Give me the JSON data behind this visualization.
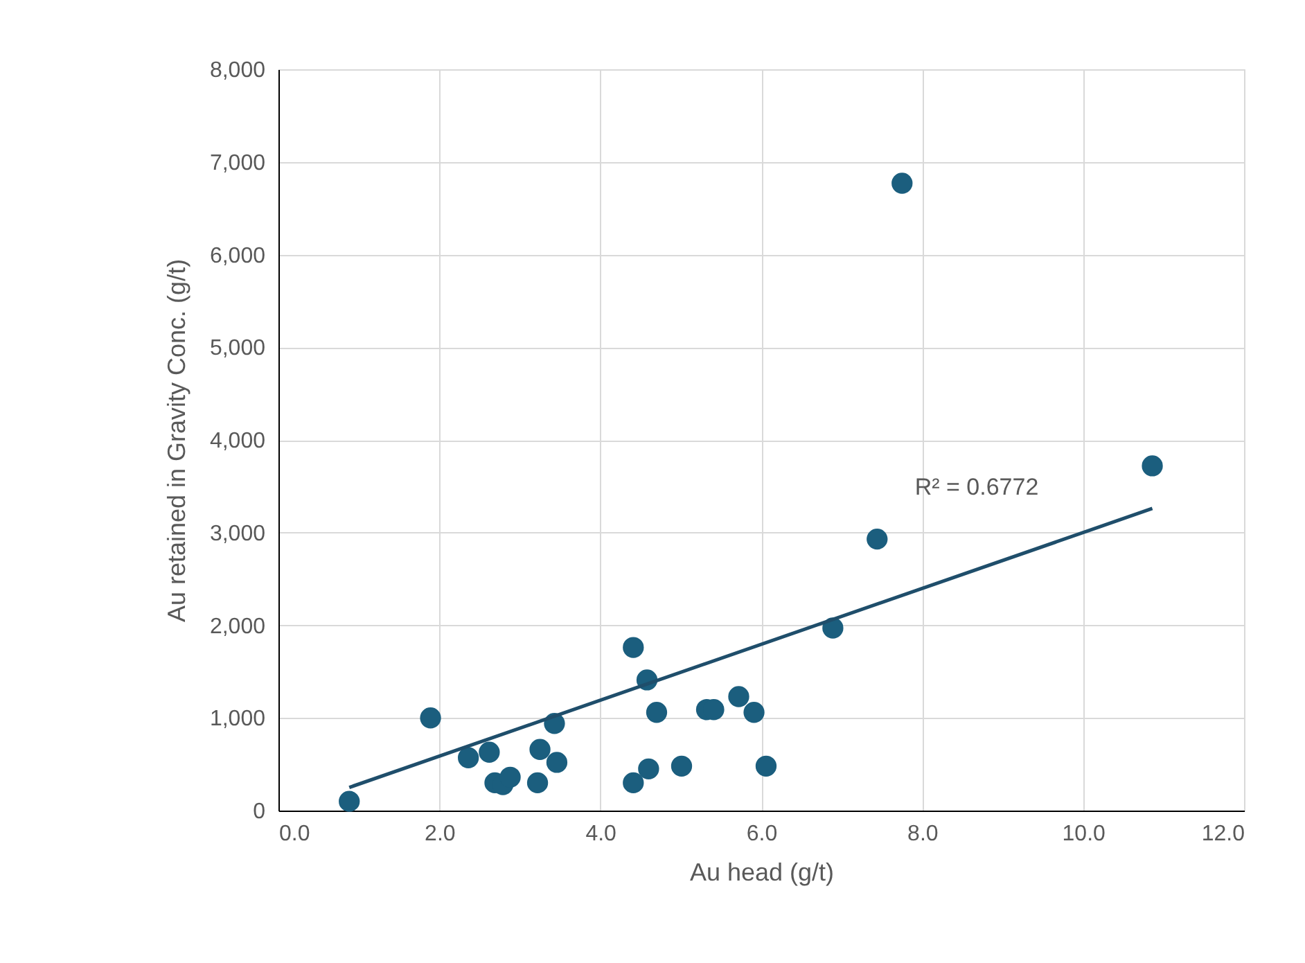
{
  "chart_data": {
    "type": "scatter",
    "xlabel": "Au head (g/t)",
    "ylabel": "Au retained in Gravity Conc. (g/t)",
    "xlim": [
      0,
      12
    ],
    "ylim": [
      0,
      8000
    ],
    "xticks": [
      {
        "value": 0,
        "label": "0.0"
      },
      {
        "value": 2,
        "label": "2.0"
      },
      {
        "value": 4,
        "label": "4.0"
      },
      {
        "value": 6,
        "label": "6.0"
      },
      {
        "value": 8,
        "label": "8.0"
      },
      {
        "value": 10,
        "label": "10.0"
      },
      {
        "value": 12,
        "label": "12.0"
      }
    ],
    "yticks": [
      0,
      {
        "value": 1000,
        "label": "1,000"
      },
      {
        "value": 2000,
        "label": "2,000"
      },
      {
        "value": 3000,
        "label": "3,000"
      },
      {
        "value": 4000,
        "label": "4,000"
      },
      {
        "value": 5000,
        "label": "5,000"
      },
      {
        "value": 6000,
        "label": "6,000"
      },
      {
        "value": 7000,
        "label": "7,000"
      },
      {
        "value": 8000,
        "label": "8,000"
      }
    ],
    "grid": true,
    "series": [
      {
        "type": "scatter",
        "marker": "circle",
        "color": "#1b5e7e",
        "x": [
          0.88,
          1.89,
          2.36,
          2.62,
          2.69,
          2.79,
          2.88,
          3.22,
          3.25,
          3.43,
          3.46,
          4.41,
          4.58,
          4.7,
          4.41,
          4.6,
          5.01,
          5.32,
          5.41,
          5.72,
          5.91,
          6.06,
          6.89,
          7.44,
          7.75,
          10.86
        ],
        "values": [
          100,
          1000,
          570,
          630,
          300,
          280,
          360,
          300,
          660,
          940,
          520,
          1760,
          1410,
          1060,
          300,
          450,
          480,
          1090,
          1090,
          1230,
          1060,
          480,
          1970,
          2930,
          6770,
          3720
        ]
      },
      {
        "type": "line",
        "color": "#1f4e6b",
        "x": [
          0.88,
          10.86
        ],
        "values": [
          250,
          3260
        ]
      }
    ],
    "annotations": [
      "R² = 0.6772"
    ]
  }
}
